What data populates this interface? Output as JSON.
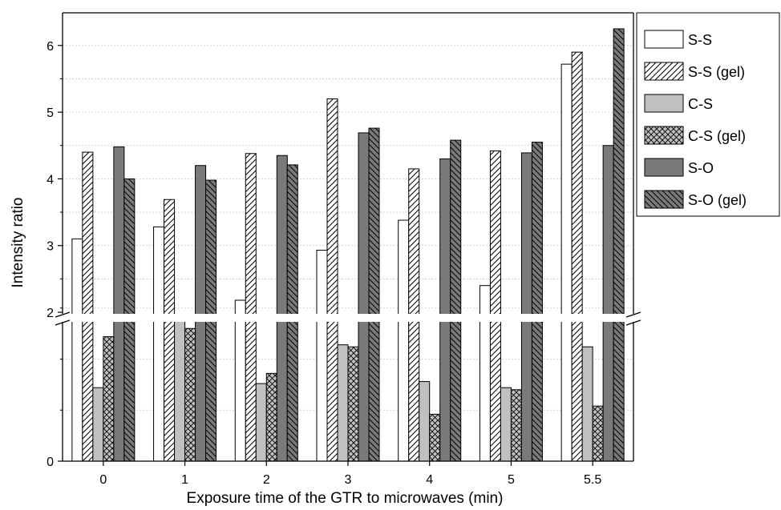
{
  "chart_data": {
    "type": "bar",
    "xlabel": "Exposure time of the GTR to microwaves (min)",
    "ylabel": "Intensity ratio",
    "categories": [
      "0",
      "1",
      "2",
      "3",
      "4",
      "5",
      "5.5"
    ],
    "y_axis_break": {
      "below": 2
    },
    "upper_ticks": [
      "2",
      "3",
      "4",
      "5",
      "6"
    ],
    "lower_ticks": [
      "0"
    ],
    "series": [
      {
        "name": "S-S",
        "fill": "#ffffff",
        "pattern": "none",
        "values": [
          3.1,
          3.28,
          2.18,
          2.93,
          3.38,
          2.4,
          5.72
        ]
      },
      {
        "name": "S-S (gel)",
        "fill": "#ffffff",
        "pattern": "diagonal",
        "values": [
          4.4,
          3.69,
          4.38,
          5.2,
          4.15,
          4.42,
          5.9
        ]
      },
      {
        "name": "C-S",
        "fill": "#c0c0c0",
        "pattern": "none",
        "values": [
          0.36,
          0.71,
          0.38,
          0.57,
          0.39,
          0.36,
          0.56
        ]
      },
      {
        "name": "C-S (gel)",
        "fill": "#c0c0c0",
        "pattern": "crosshatch",
        "values": [
          0.61,
          0.65,
          0.43,
          0.56,
          0.23,
          0.35,
          0.27
        ]
      },
      {
        "name": "S-O",
        "fill": "#7a7a7a",
        "pattern": "none",
        "values": [
          4.48,
          4.2,
          4.35,
          4.69,
          4.3,
          4.39,
          4.5
        ]
      },
      {
        "name": "S-O (gel)",
        "fill": "#7a7a7a",
        "pattern": "backdiag",
        "values": [
          4.0,
          3.98,
          4.21,
          4.76,
          4.58,
          4.55,
          6.25
        ]
      }
    ],
    "legend_position": "top-right",
    "grid": "dotted horizontal"
  }
}
